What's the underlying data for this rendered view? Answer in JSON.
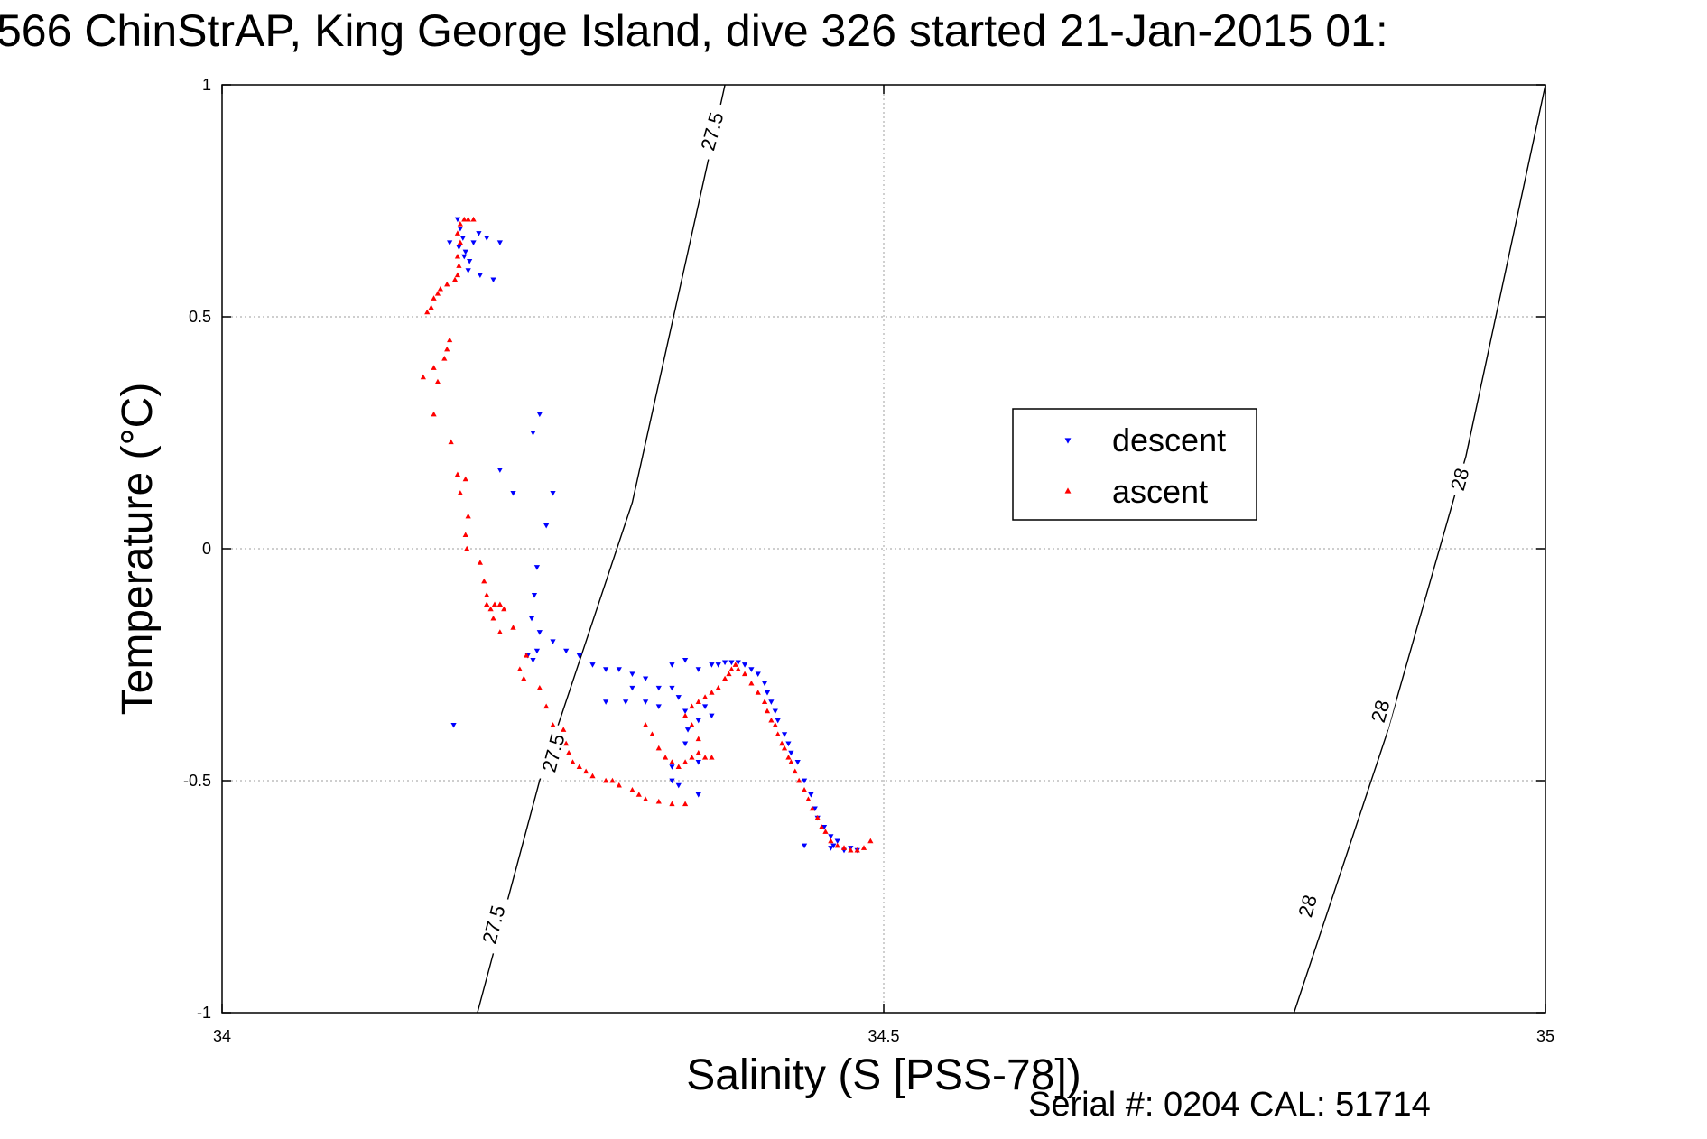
{
  "title": "566 ChinStrAP, King George Island, dive 326 started 21-Jan-2015 01:",
  "footer": "Serial #: 0204  CAL: 51714",
  "colors": {
    "descent": "#0000ff",
    "ascent": "#ff0000",
    "grid": "#b0b0b0",
    "axis": "#000000"
  },
  "chart_data": {
    "type": "scatter",
    "title": "566 ChinStrAP, King George Island, dive 326 started 21-Jan-2015 01:",
    "xlabel": "Salinity (S [PSS-78])",
    "ylabel": "Temperature (°C)",
    "xlim": [
      34,
      35
    ],
    "ylim": [
      -1,
      1
    ],
    "x_ticks": [
      34,
      34.5,
      35
    ],
    "x_tick_labels": [
      "34",
      "34.5",
      "35"
    ],
    "y_ticks": [
      -1,
      -0.5,
      0,
      0.5,
      1
    ],
    "y_tick_labels": [
      "-1",
      "-0.5",
      "0",
      "0.5",
      "1"
    ],
    "grid": true,
    "legend_position": "center-right",
    "contours": [
      {
        "label": "27.5",
        "points": [
          [
            34.193,
            -1.0
          ],
          [
            34.24,
            -0.5
          ],
          [
            34.31,
            0.1
          ],
          [
            34.38,
            1.0
          ]
        ],
        "label_positions": [
          [
            34.205,
            -0.81
          ],
          [
            34.25,
            -0.44
          ],
          [
            34.37,
            0.9
          ]
        ]
      },
      {
        "label": "28",
        "points": [
          [
            34.81,
            -1.0
          ],
          [
            34.88,
            -0.4
          ],
          [
            34.94,
            0.2
          ],
          [
            35.0,
            1.0
          ]
        ],
        "label_positions": [
          [
            34.82,
            -0.77
          ],
          [
            34.875,
            -0.35
          ],
          [
            34.935,
            0.15
          ]
        ]
      }
    ],
    "contour_label_text": [
      "27.5",
      "27.5",
      "27.5",
      "28",
      "28",
      "28"
    ],
    "series": [
      {
        "name": "descent",
        "marker": "triangle-down",
        "points": [
          [
            34.178,
            0.71
          ],
          [
            34.18,
            0.69
          ],
          [
            34.182,
            0.67
          ],
          [
            34.179,
            0.65
          ],
          [
            34.184,
            0.64
          ],
          [
            34.187,
            0.62
          ],
          [
            34.19,
            0.66
          ],
          [
            34.194,
            0.68
          ],
          [
            34.2,
            0.67
          ],
          [
            34.205,
            0.58
          ],
          [
            34.195,
            0.59
          ],
          [
            34.186,
            0.6
          ],
          [
            34.183,
            0.63
          ],
          [
            34.172,
            0.66
          ],
          [
            34.21,
            0.66
          ],
          [
            34.175,
            -0.38
          ],
          [
            34.24,
            0.29
          ],
          [
            34.235,
            0.25
          ],
          [
            34.21,
            0.17
          ],
          [
            34.22,
            0.12
          ],
          [
            34.25,
            0.12
          ],
          [
            34.245,
            0.05
          ],
          [
            34.238,
            -0.04
          ],
          [
            34.236,
            -0.1
          ],
          [
            34.234,
            -0.15
          ],
          [
            34.24,
            -0.18
          ],
          [
            34.238,
            -0.22
          ],
          [
            34.231,
            -0.23
          ],
          [
            34.235,
            -0.24
          ],
          [
            34.25,
            -0.2
          ],
          [
            34.26,
            -0.22
          ],
          [
            34.27,
            -0.23
          ],
          [
            34.28,
            -0.25
          ],
          [
            34.29,
            -0.26
          ],
          [
            34.3,
            -0.26
          ],
          [
            34.31,
            -0.27
          ],
          [
            34.32,
            -0.28
          ],
          [
            34.33,
            -0.3
          ],
          [
            34.29,
            -0.33
          ],
          [
            34.305,
            -0.33
          ],
          [
            34.31,
            -0.3
          ],
          [
            34.32,
            -0.33
          ],
          [
            34.33,
            -0.34
          ],
          [
            34.34,
            -0.3
          ],
          [
            34.345,
            -0.32
          ],
          [
            34.35,
            -0.35
          ],
          [
            34.352,
            -0.39
          ],
          [
            34.35,
            -0.42
          ],
          [
            34.36,
            -0.37
          ],
          [
            34.365,
            -0.34
          ],
          [
            34.37,
            -0.36
          ],
          [
            34.34,
            -0.5
          ],
          [
            34.36,
            -0.46
          ],
          [
            34.36,
            -0.53
          ],
          [
            34.345,
            -0.51
          ],
          [
            34.34,
            -0.47
          ],
          [
            34.34,
            -0.25
          ],
          [
            34.35,
            -0.24
          ],
          [
            34.36,
            -0.26
          ],
          [
            34.37,
            -0.25
          ],
          [
            34.375,
            -0.25
          ],
          [
            34.38,
            -0.245
          ],
          [
            34.385,
            -0.245
          ],
          [
            34.39,
            -0.245
          ],
          [
            34.395,
            -0.25
          ],
          [
            34.4,
            -0.26
          ],
          [
            34.405,
            -0.27
          ],
          [
            34.41,
            -0.29
          ],
          [
            34.412,
            -0.31
          ],
          [
            34.415,
            -0.33
          ],
          [
            34.418,
            -0.35
          ],
          [
            34.42,
            -0.37
          ],
          [
            34.425,
            -0.4
          ],
          [
            34.428,
            -0.42
          ],
          [
            34.43,
            -0.44
          ],
          [
            34.435,
            -0.46
          ],
          [
            34.44,
            -0.5
          ],
          [
            34.445,
            -0.53
          ],
          [
            34.448,
            -0.56
          ],
          [
            34.45,
            -0.58
          ],
          [
            34.455,
            -0.6
          ],
          [
            34.46,
            -0.62
          ],
          [
            34.462,
            -0.64
          ],
          [
            34.47,
            -0.65
          ],
          [
            34.475,
            -0.645
          ],
          [
            34.48,
            -0.65
          ],
          [
            34.46,
            -0.645
          ],
          [
            34.44,
            -0.64
          ],
          [
            34.465,
            -0.63
          ]
        ]
      },
      {
        "name": "ascent",
        "marker": "triangle-up",
        "points": [
          [
            34.18,
            0.7
          ],
          [
            34.183,
            0.71
          ],
          [
            34.186,
            0.71
          ],
          [
            34.19,
            0.71
          ],
          [
            34.178,
            0.68
          ],
          [
            34.18,
            0.66
          ],
          [
            34.178,
            0.63
          ],
          [
            34.179,
            0.61
          ],
          [
            34.178,
            0.59
          ],
          [
            34.176,
            0.58
          ],
          [
            34.17,
            0.57
          ],
          [
            34.165,
            0.56
          ],
          [
            34.163,
            0.55
          ],
          [
            34.16,
            0.54
          ],
          [
            34.158,
            0.52
          ],
          [
            34.155,
            0.51
          ],
          [
            34.172,
            0.45
          ],
          [
            34.17,
            0.43
          ],
          [
            34.168,
            0.41
          ],
          [
            34.16,
            0.39
          ],
          [
            34.152,
            0.37
          ],
          [
            34.163,
            0.36
          ],
          [
            34.16,
            0.29
          ],
          [
            34.173,
            0.23
          ],
          [
            34.178,
            0.16
          ],
          [
            34.184,
            0.15
          ],
          [
            34.18,
            0.12
          ],
          [
            34.186,
            0.07
          ],
          [
            34.184,
            0.03
          ],
          [
            34.185,
            0.0
          ],
          [
            34.195,
            -0.03
          ],
          [
            34.198,
            -0.07
          ],
          [
            34.2,
            -0.1
          ],
          [
            34.2,
            -0.12
          ],
          [
            34.203,
            -0.13
          ],
          [
            34.206,
            -0.12
          ],
          [
            34.21,
            -0.12
          ],
          [
            34.213,
            -0.13
          ],
          [
            34.205,
            -0.15
          ],
          [
            34.21,
            -0.18
          ],
          [
            34.22,
            -0.17
          ],
          [
            34.23,
            -0.23
          ],
          [
            34.225,
            -0.26
          ],
          [
            34.228,
            -0.28
          ],
          [
            34.24,
            -0.3
          ],
          [
            34.245,
            -0.34
          ],
          [
            34.25,
            -0.38
          ],
          [
            34.258,
            -0.39
          ],
          [
            34.26,
            -0.42
          ],
          [
            34.262,
            -0.44
          ],
          [
            34.265,
            -0.46
          ],
          [
            34.27,
            -0.47
          ],
          [
            34.275,
            -0.48
          ],
          [
            34.28,
            -0.49
          ],
          [
            34.29,
            -0.5
          ],
          [
            34.295,
            -0.5
          ],
          [
            34.3,
            -0.51
          ],
          [
            34.31,
            -0.52
          ],
          [
            34.315,
            -0.53
          ],
          [
            34.32,
            -0.54
          ],
          [
            34.33,
            -0.545
          ],
          [
            34.34,
            -0.55
          ],
          [
            34.35,
            -0.55
          ],
          [
            34.32,
            -0.38
          ],
          [
            34.325,
            -0.4
          ],
          [
            34.33,
            -0.43
          ],
          [
            34.335,
            -0.45
          ],
          [
            34.34,
            -0.46
          ],
          [
            34.345,
            -0.47
          ],
          [
            34.35,
            -0.46
          ],
          [
            34.355,
            -0.45
          ],
          [
            34.36,
            -0.44
          ],
          [
            34.365,
            -0.45
          ],
          [
            34.37,
            -0.45
          ],
          [
            34.36,
            -0.41
          ],
          [
            34.355,
            -0.38
          ],
          [
            34.35,
            -0.36
          ],
          [
            34.355,
            -0.34
          ],
          [
            34.36,
            -0.33
          ],
          [
            34.365,
            -0.32
          ],
          [
            34.37,
            -0.31
          ],
          [
            34.375,
            -0.3
          ],
          [
            34.38,
            -0.28
          ],
          [
            34.383,
            -0.27
          ],
          [
            34.385,
            -0.26
          ],
          [
            34.388,
            -0.25
          ],
          [
            34.39,
            -0.26
          ],
          [
            34.395,
            -0.27
          ],
          [
            34.4,
            -0.29
          ],
          [
            34.405,
            -0.31
          ],
          [
            34.41,
            -0.33
          ],
          [
            34.412,
            -0.35
          ],
          [
            34.415,
            -0.37
          ],
          [
            34.418,
            -0.38
          ],
          [
            34.42,
            -0.4
          ],
          [
            34.423,
            -0.42
          ],
          [
            34.425,
            -0.43
          ],
          [
            34.428,
            -0.45
          ],
          [
            34.43,
            -0.46
          ],
          [
            34.433,
            -0.48
          ],
          [
            34.436,
            -0.5
          ],
          [
            34.44,
            -0.52
          ],
          [
            34.443,
            -0.54
          ],
          [
            34.446,
            -0.56
          ],
          [
            34.45,
            -0.58
          ],
          [
            34.453,
            -0.6
          ],
          [
            34.456,
            -0.61
          ],
          [
            34.46,
            -0.63
          ],
          [
            34.465,
            -0.64
          ],
          [
            34.47,
            -0.645
          ],
          [
            34.475,
            -0.65
          ],
          [
            34.48,
            -0.65
          ],
          [
            34.485,
            -0.645
          ],
          [
            34.49,
            -0.63
          ]
        ]
      }
    ]
  }
}
